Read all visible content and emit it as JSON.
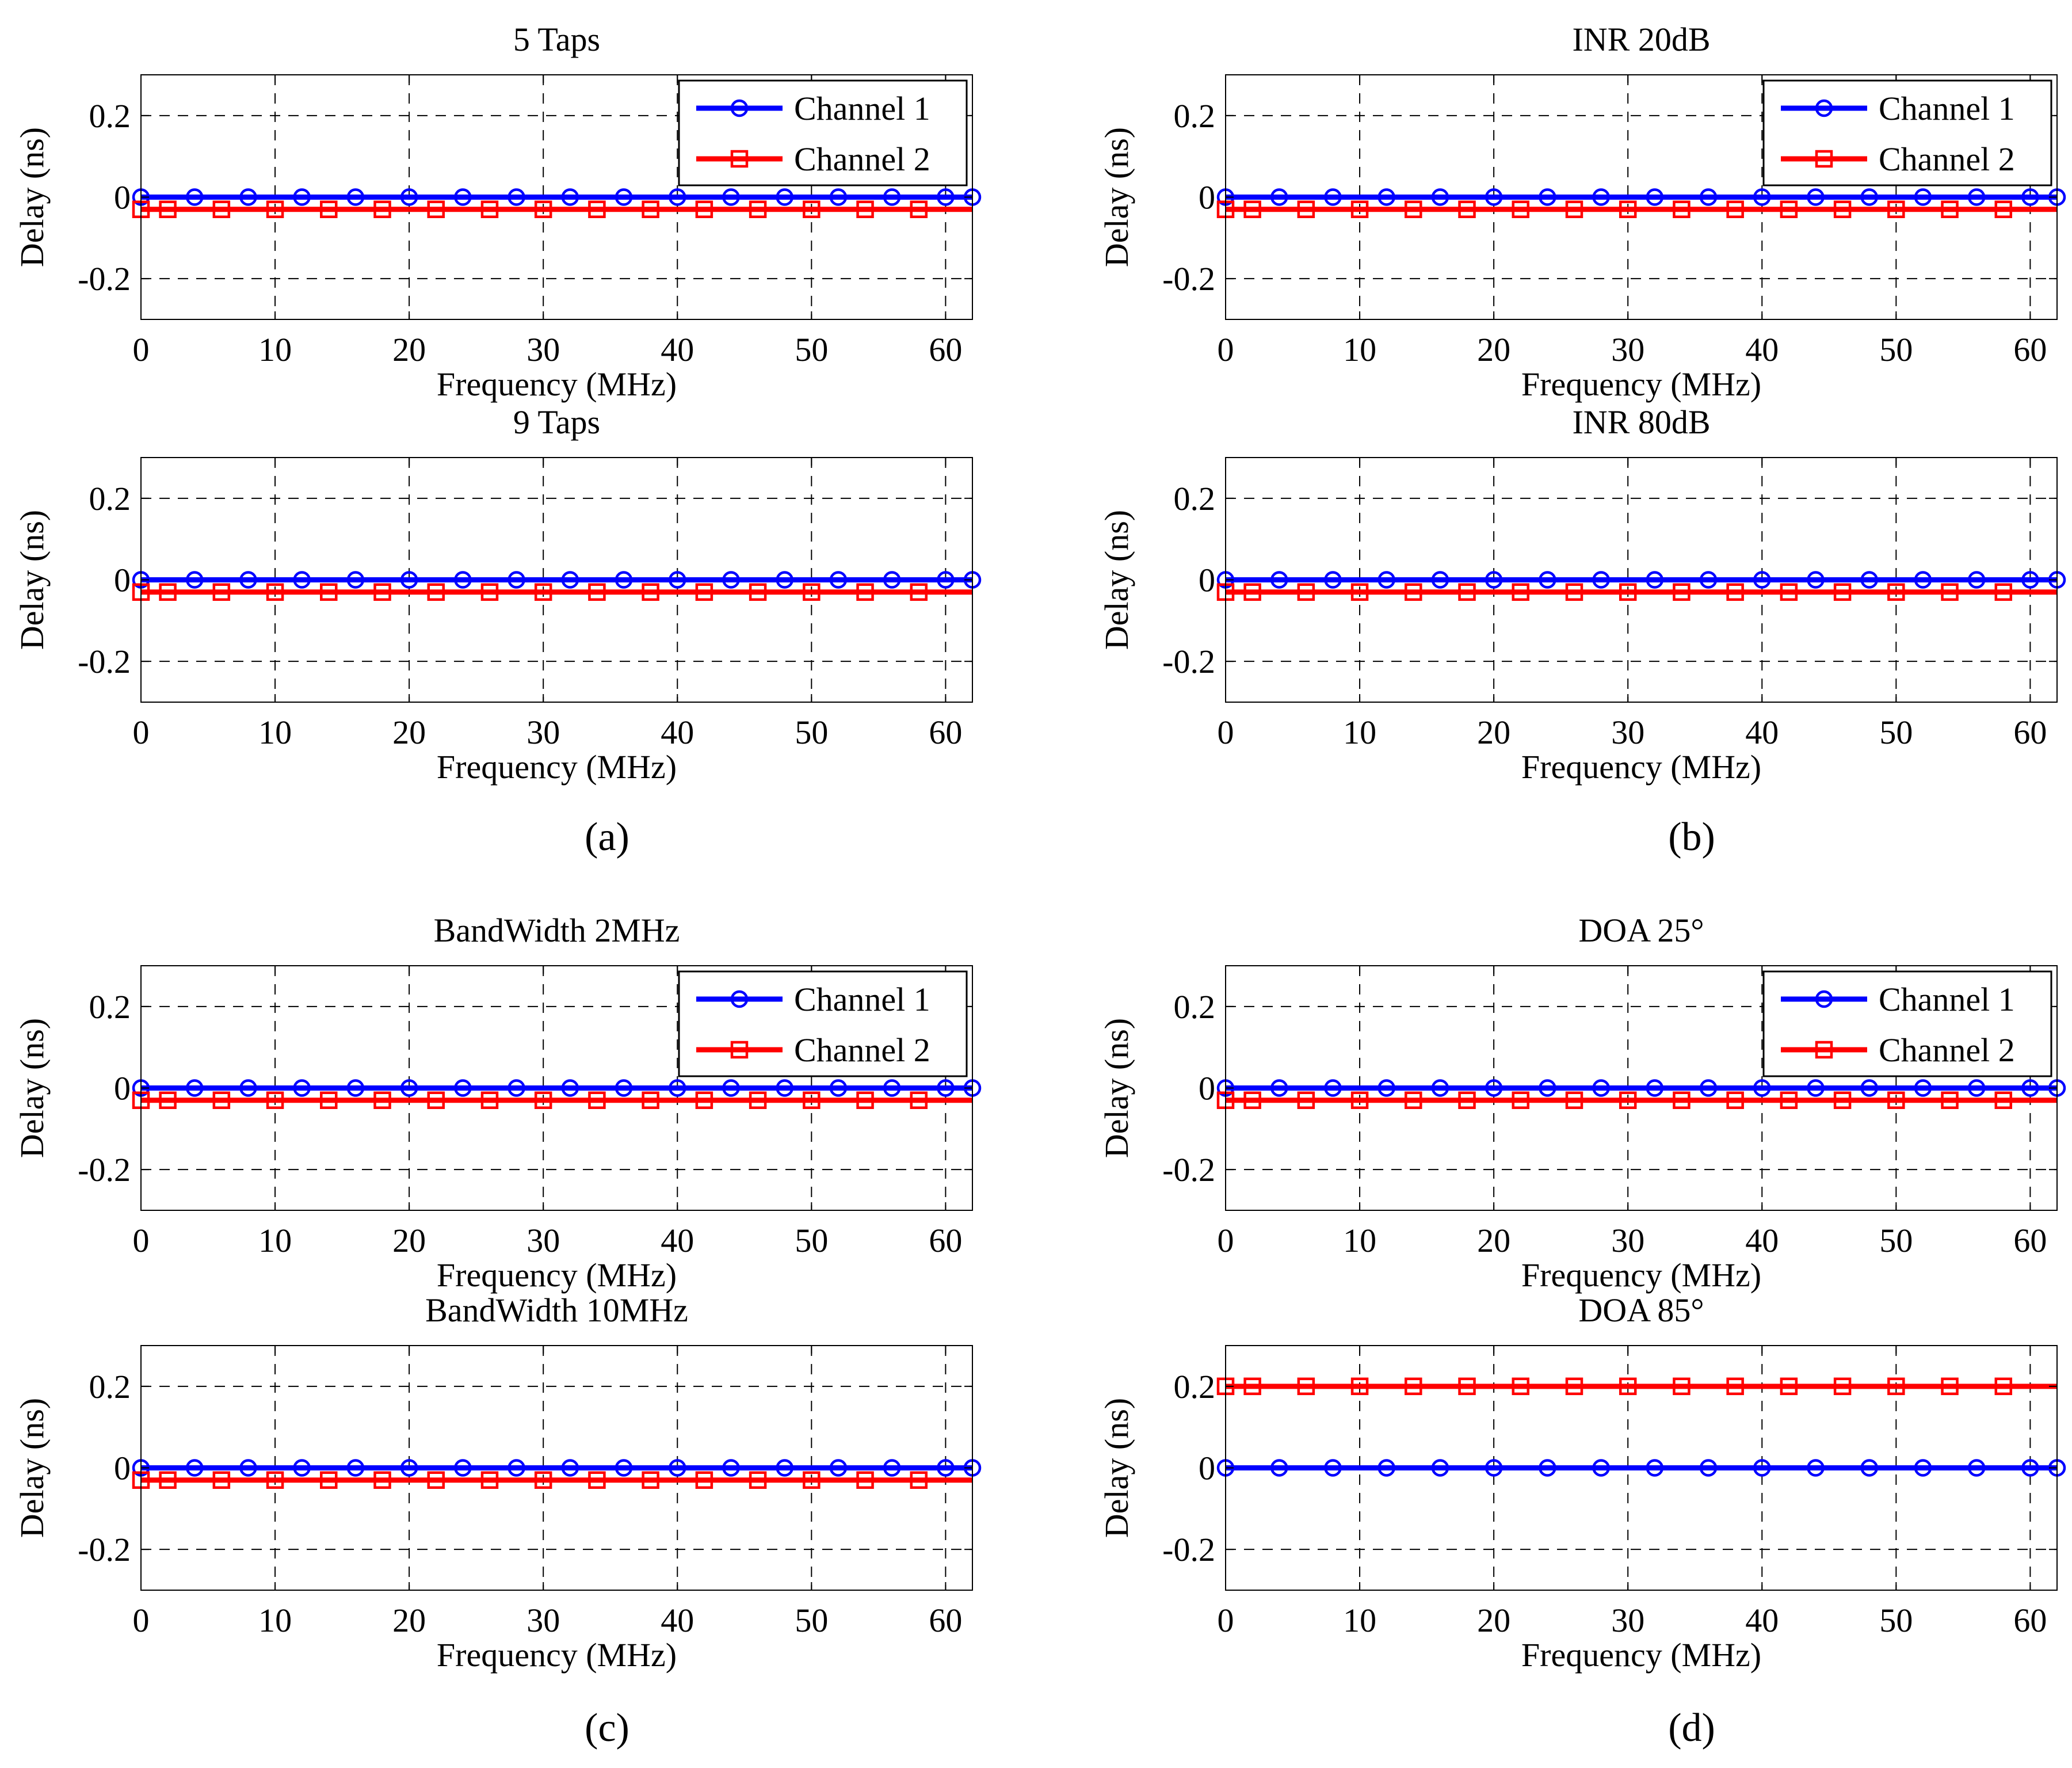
{
  "colors": {
    "channel1": "#0000ff",
    "channel2": "#ff0000",
    "grid": "#000000",
    "axis": "#000000"
  },
  "captions": [
    "(a)",
    "(b)",
    "(c)",
    "(d)"
  ],
  "chart_data": [
    {
      "type": "line",
      "title": "5 Taps",
      "xlabel": "Frequency (MHz)",
      "ylabel": "Delay (ns)",
      "xlim": [
        0,
        62
      ],
      "ylim": [
        -0.3,
        0.3
      ],
      "xticks": [
        "0",
        "10",
        "20",
        "30",
        "40",
        "50",
        "60"
      ],
      "yticks": [
        "0.2",
        "0",
        "-0.2"
      ],
      "grid": true,
      "legend": "top-right",
      "series": [
        {
          "name": "Channel 1",
          "color": "#0000ff",
          "marker": "circle",
          "y": 0,
          "marker_x": [
            0,
            4,
            8,
            12,
            16,
            20,
            24,
            28,
            32,
            36,
            40,
            44,
            48,
            52,
            56,
            60,
            62
          ]
        },
        {
          "name": "Channel 2",
          "color": "#ff0000",
          "marker": "square",
          "y": -0.03,
          "marker_x": [
            0,
            2,
            6,
            10,
            14,
            18,
            22,
            26,
            30,
            34,
            38,
            42,
            46,
            50,
            54,
            58
          ]
        }
      ]
    },
    {
      "type": "line",
      "title": "9 Taps",
      "xlabel": "Frequency (MHz)",
      "ylabel": "Delay (ns)",
      "xlim": [
        0,
        62
      ],
      "ylim": [
        -0.3,
        0.3
      ],
      "xticks": [
        "0",
        "10",
        "20",
        "30",
        "40",
        "50",
        "60"
      ],
      "yticks": [
        "0.2",
        "0",
        "-0.2"
      ],
      "grid": true,
      "legend": "none",
      "series": [
        {
          "name": "Channel 1",
          "color": "#0000ff",
          "marker": "circle",
          "y": 0,
          "marker_x": [
            0,
            4,
            8,
            12,
            16,
            20,
            24,
            28,
            32,
            36,
            40,
            44,
            48,
            52,
            56,
            60,
            62
          ]
        },
        {
          "name": "Channel 2",
          "color": "#ff0000",
          "marker": "square",
          "y": -0.03,
          "marker_x": [
            0,
            2,
            6,
            10,
            14,
            18,
            22,
            26,
            30,
            34,
            38,
            42,
            46,
            50,
            54,
            58
          ]
        }
      ]
    },
    {
      "type": "line",
      "title": "INR 20dB",
      "xlabel": "Frequency (MHz)",
      "ylabel": "Delay (ns)",
      "xlim": [
        0,
        62
      ],
      "ylim": [
        -0.3,
        0.3
      ],
      "xticks": [
        "0",
        "10",
        "20",
        "30",
        "40",
        "50",
        "60"
      ],
      "yticks": [
        "0.2",
        "0",
        "-0.2"
      ],
      "grid": true,
      "legend": "top-right",
      "series": [
        {
          "name": "Channel 1",
          "color": "#0000ff",
          "marker": "circle",
          "y": 0,
          "marker_x": [
            0,
            4,
            8,
            12,
            16,
            20,
            24,
            28,
            32,
            36,
            40,
            44,
            48,
            52,
            56,
            60,
            62
          ]
        },
        {
          "name": "Channel 2",
          "color": "#ff0000",
          "marker": "square",
          "y": -0.03,
          "marker_x": [
            0,
            2,
            6,
            10,
            14,
            18,
            22,
            26,
            30,
            34,
            38,
            42,
            46,
            50,
            54,
            58
          ]
        }
      ]
    },
    {
      "type": "line",
      "title": "INR 80dB",
      "xlabel": "Frequency (MHz)",
      "ylabel": "Delay (ns)",
      "xlim": [
        0,
        62
      ],
      "ylim": [
        -0.3,
        0.3
      ],
      "xticks": [
        "0",
        "10",
        "20",
        "30",
        "40",
        "50",
        "60"
      ],
      "yticks": [
        "0.2",
        "0",
        "-0.2"
      ],
      "grid": true,
      "legend": "none",
      "series": [
        {
          "name": "Channel 1",
          "color": "#0000ff",
          "marker": "circle",
          "y": 0,
          "marker_x": [
            0,
            4,
            8,
            12,
            16,
            20,
            24,
            28,
            32,
            36,
            40,
            44,
            48,
            52,
            56,
            60,
            62
          ]
        },
        {
          "name": "Channel 2",
          "color": "#ff0000",
          "marker": "square",
          "y": -0.03,
          "marker_x": [
            0,
            2,
            6,
            10,
            14,
            18,
            22,
            26,
            30,
            34,
            38,
            42,
            46,
            50,
            54,
            58
          ]
        }
      ]
    },
    {
      "type": "line",
      "title": "BandWidth 2MHz",
      "xlabel": "Frequency (MHz)",
      "ylabel": "Delay (ns)",
      "xlim": [
        0,
        62
      ],
      "ylim": [
        -0.3,
        0.3
      ],
      "xticks": [
        "0",
        "10",
        "20",
        "30",
        "40",
        "50",
        "60"
      ],
      "yticks": [
        "0.2",
        "0",
        "-0.2"
      ],
      "grid": true,
      "legend": "top-right",
      "series": [
        {
          "name": "Channel 1",
          "color": "#0000ff",
          "marker": "circle",
          "y": 0,
          "marker_x": [
            0,
            4,
            8,
            12,
            16,
            20,
            24,
            28,
            32,
            36,
            40,
            44,
            48,
            52,
            56,
            60,
            62
          ]
        },
        {
          "name": "Channel 2",
          "color": "#ff0000",
          "marker": "square",
          "y": -0.03,
          "marker_x": [
            0,
            2,
            6,
            10,
            14,
            18,
            22,
            26,
            30,
            34,
            38,
            42,
            46,
            50,
            54,
            58
          ]
        }
      ]
    },
    {
      "type": "line",
      "title": "BandWidth 10MHz",
      "xlabel": "Frequency (MHz)",
      "ylabel": "Delay (ns)",
      "xlim": [
        0,
        62
      ],
      "ylim": [
        -0.3,
        0.3
      ],
      "xticks": [
        "0",
        "10",
        "20",
        "30",
        "40",
        "50",
        "60"
      ],
      "yticks": [
        "0.2",
        "0",
        "-0.2"
      ],
      "grid": true,
      "legend": "none",
      "series": [
        {
          "name": "Channel 1",
          "color": "#0000ff",
          "marker": "circle",
          "y": 0,
          "marker_x": [
            0,
            4,
            8,
            12,
            16,
            20,
            24,
            28,
            32,
            36,
            40,
            44,
            48,
            52,
            56,
            60,
            62
          ]
        },
        {
          "name": "Channel 2",
          "color": "#ff0000",
          "marker": "square",
          "y": -0.03,
          "marker_x": [
            0,
            2,
            6,
            10,
            14,
            18,
            22,
            26,
            30,
            34,
            38,
            42,
            46,
            50,
            54,
            58
          ]
        }
      ]
    },
    {
      "type": "line",
      "title": "DOA 25°",
      "xlabel": "Frequency (MHz)",
      "ylabel": "Delay (ns)",
      "xlim": [
        0,
        62
      ],
      "ylim": [
        -0.3,
        0.3
      ],
      "xticks": [
        "0",
        "10",
        "20",
        "30",
        "40",
        "50",
        "60"
      ],
      "yticks": [
        "0.2",
        "0",
        "-0.2"
      ],
      "grid": true,
      "legend": "top-right",
      "series": [
        {
          "name": "Channel 1",
          "color": "#0000ff",
          "marker": "circle",
          "y": 0,
          "marker_x": [
            0,
            4,
            8,
            12,
            16,
            20,
            24,
            28,
            32,
            36,
            40,
            44,
            48,
            52,
            56,
            60,
            62
          ]
        },
        {
          "name": "Channel 2",
          "color": "#ff0000",
          "marker": "square",
          "y": -0.03,
          "marker_x": [
            0,
            2,
            6,
            10,
            14,
            18,
            22,
            26,
            30,
            34,
            38,
            42,
            46,
            50,
            54,
            58
          ]
        }
      ]
    },
    {
      "type": "line",
      "title": "DOA 85°",
      "xlabel": "Frequency (MHz)",
      "ylabel": "Delay (ns)",
      "xlim": [
        0,
        62
      ],
      "ylim": [
        -0.3,
        0.3
      ],
      "xticks": [
        "0",
        "10",
        "20",
        "30",
        "40",
        "50",
        "60"
      ],
      "yticks": [
        "0.2",
        "0",
        "-0.2"
      ],
      "grid": true,
      "legend": "none",
      "series": [
        {
          "name": "Channel 1",
          "color": "#0000ff",
          "marker": "circle",
          "y": 0,
          "marker_x": [
            0,
            4,
            8,
            12,
            16,
            20,
            24,
            28,
            32,
            36,
            40,
            44,
            48,
            52,
            56,
            60,
            62
          ]
        },
        {
          "name": "Channel 2",
          "color": "#ff0000",
          "marker": "square",
          "y": 0.2,
          "marker_x": [
            0,
            2,
            6,
            10,
            14,
            18,
            22,
            26,
            30,
            34,
            38,
            42,
            46,
            50,
            54,
            58
          ]
        }
      ]
    }
  ]
}
